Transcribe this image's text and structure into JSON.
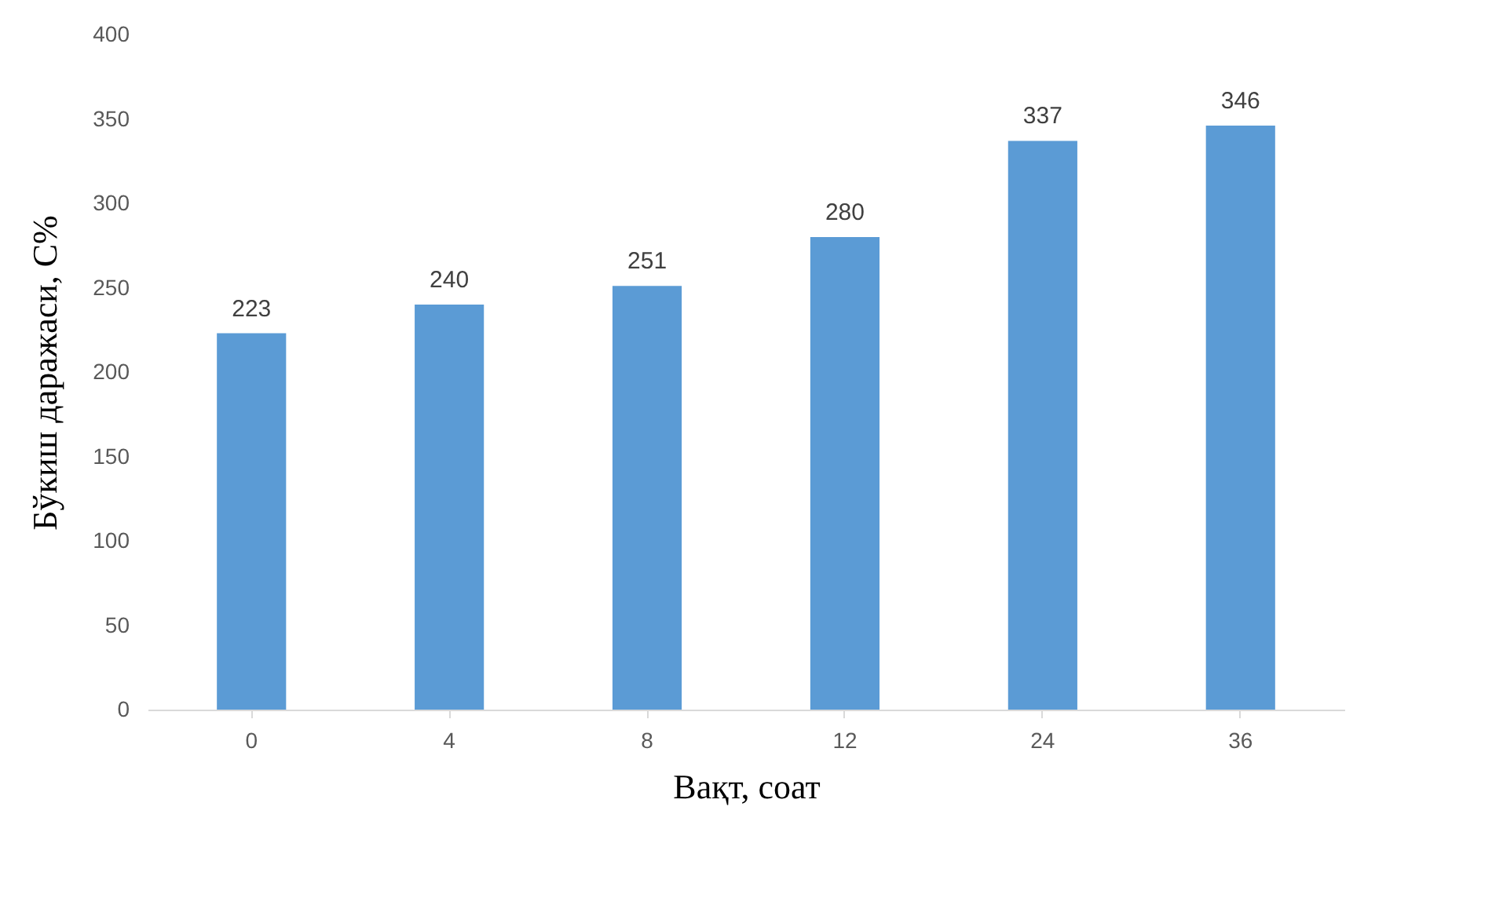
{
  "chart_data": {
    "type": "bar",
    "xlabel": "Вақт, соат",
    "ylabel": "Бўкиш даражаси, С%",
    "categories": [
      "0",
      "4",
      "8",
      "12",
      "24",
      "36"
    ],
    "values": [
      223,
      240,
      251,
      280,
      337,
      346
    ],
    "color": "#5b9bd5",
    "ylim": [
      0,
      400
    ],
    "yticks": [
      0,
      50,
      100,
      150,
      200,
      250,
      300,
      350,
      400
    ],
    "data_labels": true
  }
}
